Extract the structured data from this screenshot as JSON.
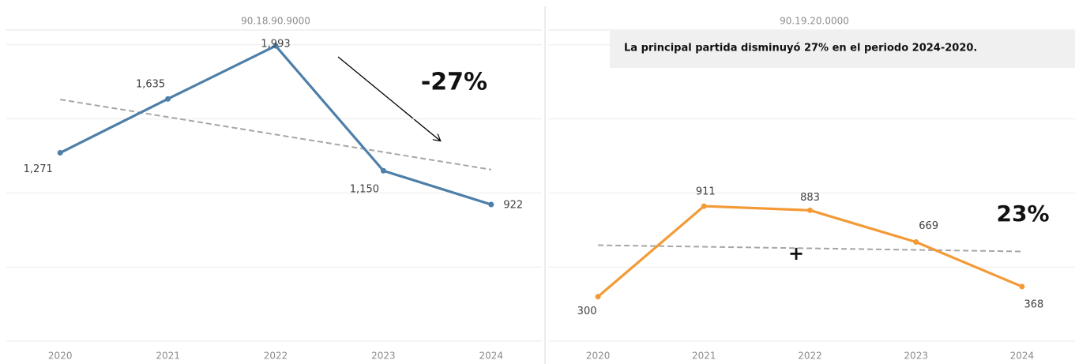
{
  "chart_data": [
    {
      "type": "line",
      "title": "90.18.90.9000",
      "categories": [
        "2020",
        "2021",
        "2022",
        "2023",
        "2024"
      ],
      "values": [
        1271,
        1635,
        1993,
        1150,
        922
      ],
      "value_labels": [
        "1,271",
        "1,635",
        "1,993",
        "1,150",
        "922"
      ],
      "color": "#4e7fa8",
      "trendline": true,
      "grid": true,
      "ylim": [
        0,
        2100
      ],
      "yticks": [
        0,
        500,
        1000,
        1500,
        2000
      ],
      "annotations": [
        "-27%"
      ]
    },
    {
      "type": "line",
      "title": "90.19.20.0000",
      "categories": [
        "2020",
        "2021",
        "2022",
        "2023",
        "2024"
      ],
      "values": [
        300,
        911,
        883,
        669,
        368
      ],
      "color": "#f39a37",
      "trendline": true,
      "grid": true,
      "ylim": [
        0,
        2100
      ],
      "yticks": [
        0,
        500,
        1000,
        1500,
        2000
      ],
      "annotations": [
        "23%",
        "+",
        "La principal partida disminuyó 27% en el periodo 2024-2020."
      ]
    }
  ]
}
